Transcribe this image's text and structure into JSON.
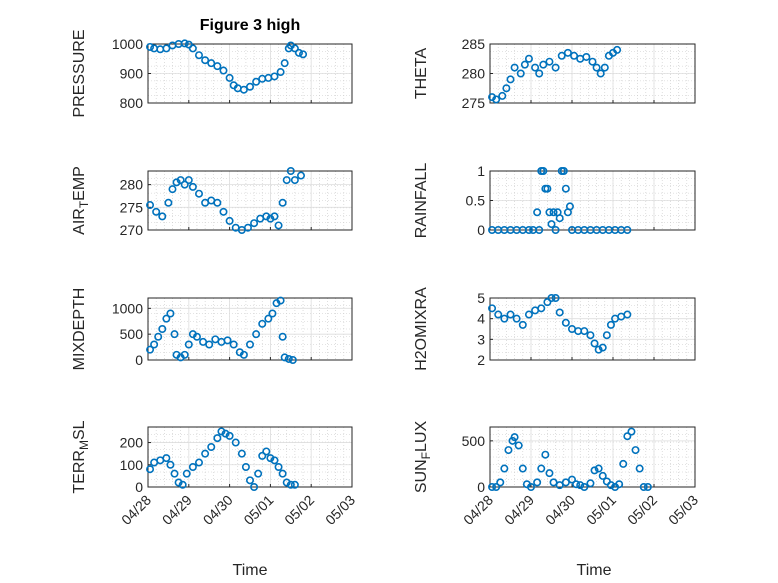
{
  "figure_title": "Figure 3 high",
  "colors": {
    "marker": "#0072bd",
    "axis": "#262626",
    "grid": "#c8c8c8"
  },
  "x_tick_labels": [
    "04/28",
    "04/29",
    "04/30",
    "05/01",
    "05/02",
    "05/03"
  ],
  "x_label": "Time",
  "chart_data": [
    {
      "type": "scatter",
      "ylabel": "PRESSURE",
      "ylim": [
        800,
        1000
      ],
      "yticks": [
        800,
        900,
        1000
      ],
      "xlim": [
        0,
        5
      ],
      "grid": true,
      "points": [
        [
          0.05,
          990
        ],
        [
          0.15,
          985
        ],
        [
          0.3,
          982
        ],
        [
          0.45,
          985
        ],
        [
          0.6,
          995
        ],
        [
          0.75,
          1000
        ],
        [
          0.9,
          1002
        ],
        [
          1.0,
          998
        ],
        [
          1.1,
          985
        ],
        [
          1.25,
          962
        ],
        [
          1.4,
          945
        ],
        [
          1.55,
          935
        ],
        [
          1.7,
          925
        ],
        [
          1.85,
          910
        ],
        [
          2.0,
          885
        ],
        [
          2.1,
          860
        ],
        [
          2.2,
          850
        ],
        [
          2.35,
          845
        ],
        [
          2.5,
          855
        ],
        [
          2.65,
          872
        ],
        [
          2.8,
          882
        ],
        [
          2.95,
          885
        ],
        [
          3.1,
          890
        ],
        [
          3.25,
          905
        ],
        [
          3.35,
          935
        ],
        [
          3.45,
          985
        ],
        [
          3.5,
          995
        ],
        [
          3.6,
          985
        ],
        [
          3.7,
          970
        ],
        [
          3.8,
          965
        ]
      ]
    },
    {
      "type": "scatter",
      "ylabel": "THETA",
      "ylim": [
        275,
        285
      ],
      "yticks": [
        275,
        280,
        285
      ],
      "xlim": [
        0,
        5
      ],
      "grid": true,
      "points": [
        [
          0.05,
          276
        ],
        [
          0.15,
          275.6
        ],
        [
          0.3,
          276.2
        ],
        [
          0.4,
          277.5
        ],
        [
          0.5,
          279
        ],
        [
          0.6,
          281
        ],
        [
          0.75,
          280
        ],
        [
          0.85,
          281.5
        ],
        [
          0.95,
          282.5
        ],
        [
          1.1,
          281
        ],
        [
          1.2,
          280
        ],
        [
          1.3,
          281.5
        ],
        [
          1.45,
          282
        ],
        [
          1.6,
          281
        ],
        [
          1.75,
          283
        ],
        [
          1.9,
          283.5
        ],
        [
          2.05,
          283
        ],
        [
          2.2,
          282.5
        ],
        [
          2.35,
          282.8
        ],
        [
          2.5,
          282
        ],
        [
          2.6,
          281
        ],
        [
          2.7,
          280
        ],
        [
          2.8,
          281
        ],
        [
          2.9,
          283
        ],
        [
          3.0,
          283.5
        ],
        [
          3.1,
          284
        ]
      ]
    },
    {
      "type": "scatter",
      "ylabel": "AIR_TEMP",
      "ylabel_parts": [
        "AIR",
        "T",
        "EMP"
      ],
      "ylim": [
        270,
        283
      ],
      "yticks": [
        270,
        275,
        280
      ],
      "xlim": [
        0,
        5
      ],
      "grid": true,
      "points": [
        [
          0.05,
          275.5
        ],
        [
          0.2,
          274
        ],
        [
          0.35,
          273
        ],
        [
          0.5,
          276
        ],
        [
          0.6,
          279
        ],
        [
          0.7,
          280.5
        ],
        [
          0.8,
          281
        ],
        [
          0.9,
          280
        ],
        [
          1.0,
          281
        ],
        [
          1.1,
          279.5
        ],
        [
          1.25,
          278
        ],
        [
          1.4,
          276
        ],
        [
          1.55,
          276.5
        ],
        [
          1.7,
          276
        ],
        [
          1.85,
          274
        ],
        [
          2.0,
          272
        ],
        [
          2.15,
          270.5
        ],
        [
          2.3,
          270
        ],
        [
          2.45,
          270.5
        ],
        [
          2.6,
          271.5
        ],
        [
          2.75,
          272.5
        ],
        [
          2.9,
          273
        ],
        [
          3.0,
          272.5
        ],
        [
          3.1,
          273
        ],
        [
          3.2,
          271
        ],
        [
          3.3,
          276
        ],
        [
          3.4,
          281
        ],
        [
          3.5,
          283
        ],
        [
          3.6,
          281
        ],
        [
          3.75,
          282
        ]
      ]
    },
    {
      "type": "scatter",
      "ylabel": "RAINFALL",
      "ylim": [
        0,
        1
      ],
      "yticks": [
        0,
        0.5,
        1
      ],
      "xlim": [
        0,
        5
      ],
      "grid": true,
      "points": [
        [
          0.05,
          0
        ],
        [
          0.2,
          0
        ],
        [
          0.35,
          0
        ],
        [
          0.5,
          0
        ],
        [
          0.65,
          0
        ],
        [
          0.8,
          0
        ],
        [
          0.95,
          0
        ],
        [
          1.05,
          0
        ],
        [
          1.15,
          0.3
        ],
        [
          1.2,
          0
        ],
        [
          1.25,
          1
        ],
        [
          1.3,
          1
        ],
        [
          1.35,
          0.7
        ],
        [
          1.4,
          0.7
        ],
        [
          1.45,
          0.3
        ],
        [
          1.5,
          0.1
        ],
        [
          1.55,
          0.3
        ],
        [
          1.6,
          0
        ],
        [
          1.65,
          0.3
        ],
        [
          1.7,
          0.2
        ],
        [
          1.75,
          1
        ],
        [
          1.8,
          1
        ],
        [
          1.85,
          0.7
        ],
        [
          1.9,
          0.3
        ],
        [
          1.95,
          0.4
        ],
        [
          2.0,
          0
        ],
        [
          2.15,
          0
        ],
        [
          2.3,
          0
        ],
        [
          2.45,
          0
        ],
        [
          2.6,
          0
        ],
        [
          2.75,
          0
        ],
        [
          2.9,
          0
        ],
        [
          3.05,
          0
        ],
        [
          3.2,
          0
        ],
        [
          3.35,
          0
        ]
      ]
    },
    {
      "type": "scatter",
      "ylabel": "MIXDEPTH",
      "ylim": [
        0,
        1200
      ],
      "yticks": [
        0,
        500,
        1000
      ],
      "xlim": [
        0,
        5
      ],
      "grid": true,
      "points": [
        [
          0.05,
          200
        ],
        [
          0.15,
          300
        ],
        [
          0.25,
          450
        ],
        [
          0.35,
          600
        ],
        [
          0.45,
          800
        ],
        [
          0.55,
          900
        ],
        [
          0.65,
          500
        ],
        [
          0.7,
          100
        ],
        [
          0.8,
          50
        ],
        [
          0.9,
          100
        ],
        [
          1.0,
          300
        ],
        [
          1.1,
          500
        ],
        [
          1.2,
          450
        ],
        [
          1.35,
          350
        ],
        [
          1.5,
          300
        ],
        [
          1.65,
          400
        ],
        [
          1.8,
          350
        ],
        [
          1.95,
          380
        ],
        [
          2.1,
          300
        ],
        [
          2.25,
          150
        ],
        [
          2.35,
          100
        ],
        [
          2.5,
          300
        ],
        [
          2.65,
          500
        ],
        [
          2.8,
          700
        ],
        [
          2.95,
          800
        ],
        [
          3.05,
          900
        ],
        [
          3.15,
          1100
        ],
        [
          3.25,
          1150
        ],
        [
          3.3,
          450
        ],
        [
          3.35,
          50
        ],
        [
          3.45,
          20
        ],
        [
          3.55,
          0
        ]
      ]
    },
    {
      "type": "scatter",
      "ylabel": "H2OMIXRA",
      "ylim": [
        2,
        5
      ],
      "yticks": [
        2,
        3,
        4,
        5
      ],
      "xlim": [
        0,
        5
      ],
      "grid": true,
      "points": [
        [
          0.05,
          4.5
        ],
        [
          0.2,
          4.2
        ],
        [
          0.35,
          4.0
        ],
        [
          0.5,
          4.2
        ],
        [
          0.65,
          4.0
        ],
        [
          0.8,
          3.7
        ],
        [
          0.95,
          4.2
        ],
        [
          1.1,
          4.4
        ],
        [
          1.25,
          4.5
        ],
        [
          1.4,
          4.8
        ],
        [
          1.5,
          5.0
        ],
        [
          1.6,
          5.0
        ],
        [
          1.7,
          4.3
        ],
        [
          1.85,
          3.8
        ],
        [
          2.0,
          3.5
        ],
        [
          2.15,
          3.4
        ],
        [
          2.3,
          3.4
        ],
        [
          2.45,
          3.2
        ],
        [
          2.55,
          2.8
        ],
        [
          2.65,
          2.5
        ],
        [
          2.75,
          2.6
        ],
        [
          2.85,
          3.2
        ],
        [
          2.95,
          3.7
        ],
        [
          3.05,
          4.0
        ],
        [
          3.2,
          4.1
        ],
        [
          3.35,
          4.2
        ]
      ]
    },
    {
      "type": "scatter",
      "ylabel": "TERR_MSL",
      "ylabel_parts": [
        "TERR",
        "M",
        "SL"
      ],
      "ylim": [
        0,
        270
      ],
      "yticks": [
        0,
        100,
        200
      ],
      "xlim": [
        0,
        5
      ],
      "grid": true,
      "points": [
        [
          0.05,
          80
        ],
        [
          0.15,
          110
        ],
        [
          0.3,
          120
        ],
        [
          0.45,
          130
        ],
        [
          0.55,
          100
        ],
        [
          0.65,
          60
        ],
        [
          0.75,
          20
        ],
        [
          0.85,
          10
        ],
        [
          0.95,
          60
        ],
        [
          1.1,
          90
        ],
        [
          1.25,
          110
        ],
        [
          1.4,
          150
        ],
        [
          1.55,
          180
        ],
        [
          1.7,
          220
        ],
        [
          1.8,
          250
        ],
        [
          1.9,
          240
        ],
        [
          2.0,
          230
        ],
        [
          2.15,
          200
        ],
        [
          2.3,
          150
        ],
        [
          2.4,
          90
        ],
        [
          2.5,
          30
        ],
        [
          2.6,
          0
        ],
        [
          2.7,
          60
        ],
        [
          2.8,
          140
        ],
        [
          2.9,
          160
        ],
        [
          3.0,
          130
        ],
        [
          3.1,
          120
        ],
        [
          3.2,
          90
        ],
        [
          3.3,
          60
        ],
        [
          3.4,
          20
        ],
        [
          3.5,
          10
        ],
        [
          3.6,
          10
        ]
      ]
    },
    {
      "type": "scatter",
      "ylabel": "SUN_FLUX",
      "ylabel_parts": [
        "SUN",
        "F",
        "LUX"
      ],
      "ylim": [
        0,
        650
      ],
      "yticks": [
        0,
        500
      ],
      "xlim": [
        0,
        5
      ],
      "grid": true,
      "points": [
        [
          0.05,
          0
        ],
        [
          0.15,
          0
        ],
        [
          0.25,
          50
        ],
        [
          0.35,
          200
        ],
        [
          0.45,
          400
        ],
        [
          0.55,
          500
        ],
        [
          0.6,
          540
        ],
        [
          0.7,
          450
        ],
        [
          0.8,
          200
        ],
        [
          0.9,
          30
        ],
        [
          1.0,
          0
        ],
        [
          1.15,
          50
        ],
        [
          1.25,
          200
        ],
        [
          1.35,
          350
        ],
        [
          1.45,
          150
        ],
        [
          1.55,
          50
        ],
        [
          1.7,
          20
        ],
        [
          1.85,
          50
        ],
        [
          2.0,
          80
        ],
        [
          2.1,
          30
        ],
        [
          2.2,
          20
        ],
        [
          2.3,
          0
        ],
        [
          2.45,
          40
        ],
        [
          2.55,
          180
        ],
        [
          2.65,
          200
        ],
        [
          2.75,
          120
        ],
        [
          2.85,
          60
        ],
        [
          2.95,
          20
        ],
        [
          3.05,
          0
        ],
        [
          3.15,
          30
        ],
        [
          3.25,
          250
        ],
        [
          3.35,
          550
        ],
        [
          3.45,
          600
        ],
        [
          3.55,
          400
        ],
        [
          3.65,
          200
        ],
        [
          3.75,
          0
        ],
        [
          3.85,
          0
        ]
      ]
    }
  ]
}
